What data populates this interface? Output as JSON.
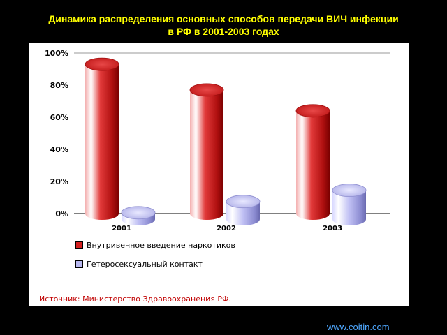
{
  "header": {
    "title_line1": "Динамика распределения основных способов передачи ВИЧ инфекции",
    "title_line2": "в РФ в 2001-2003 годах"
  },
  "footer": {
    "source": "Источник: Министерство Здравоохранения РФ.",
    "site": "www.coitin.com"
  },
  "colors": {
    "title": "#FFFF00",
    "series1": "#D42020",
    "series2": "#B8B8F0",
    "source": "#C00000",
    "site": "#4FA8FF"
  },
  "chart_data": {
    "type": "bar",
    "style": "3d-cylinder",
    "categories": [
      "2001",
      "2002",
      "2003"
    ],
    "series": [
      {
        "name": "Внутривенное введение наркотиков",
        "values": [
          93,
          77,
          64
        ]
      },
      {
        "name": "Гетеросексуальный контакт",
        "values": [
          4,
          11,
          18
        ]
      }
    ],
    "yticks": [
      "0%",
      "20%",
      "40%",
      "60%",
      "80%",
      "100%"
    ],
    "ylim": [
      0,
      100
    ],
    "grid": false,
    "legend": "bottom-left"
  }
}
